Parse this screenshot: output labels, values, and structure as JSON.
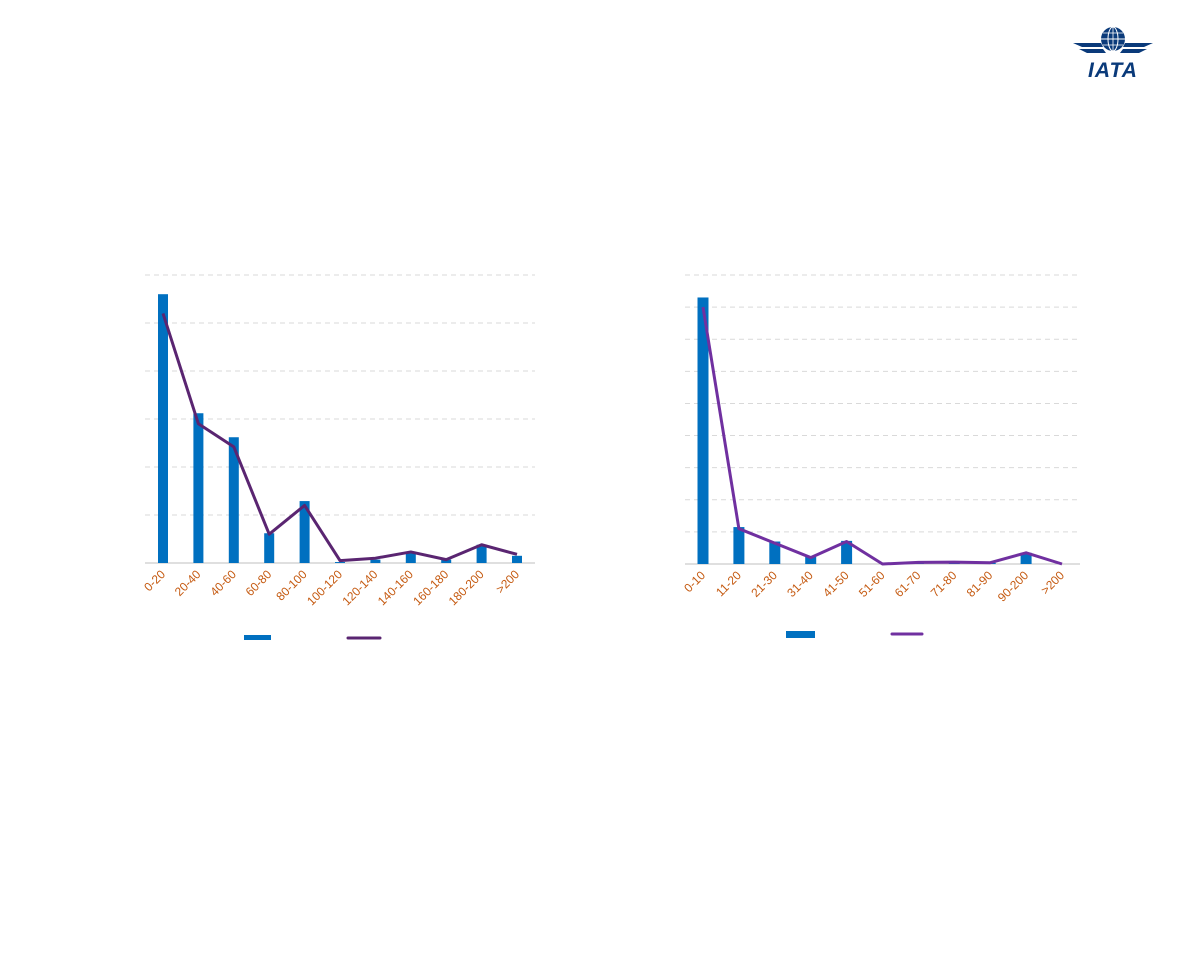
{
  "brand": {
    "logo_text": "IATA",
    "logo_color": "#0a3a7a"
  },
  "colors": {
    "bar": "#0070c0",
    "line_left": "#5a2571",
    "line_right": "#7030a0",
    "tick_label": "#c55a11",
    "grid": "#d9d9d9",
    "axis": "#bfbfbf"
  },
  "chart_data": [
    {
      "type": "bar",
      "categories": [
        "0-20",
        "20-40",
        "40-60",
        "60-80",
        "80-100",
        "100-120",
        "120-140",
        "140-160",
        "160-180",
        "180-200",
        ">200"
      ],
      "series": [
        {
          "type": "bar",
          "values": [
            5.6,
            3.12,
            2.62,
            0.62,
            1.29,
            0.02,
            0.07,
            0.22,
            0.07,
            0.38,
            0.15
          ]
        },
        {
          "type": "line",
          "values": [
            5.2,
            2.9,
            2.42,
            0.6,
            1.2,
            0.05,
            0.1,
            0.23,
            0.07,
            0.38,
            0.18
          ]
        }
      ],
      "ylim": [
        0,
        6
      ],
      "gridlines": 6,
      "grid": true,
      "legend": "bottom"
    },
    {
      "type": "bar",
      "categories": [
        "0-10",
        "11-20",
        "21-30",
        "31-40",
        "41-50",
        "51-60",
        "61-70",
        "71-80",
        "81-90",
        "90-200",
        ">200"
      ],
      "series": [
        {
          "type": "bar",
          "values": [
            8.3,
            1.15,
            0.7,
            0.22,
            0.72,
            0.0,
            0.05,
            0.05,
            0.04,
            0.35,
            0.0
          ]
        },
        {
          "type": "line",
          "values": [
            8.0,
            1.1,
            0.65,
            0.2,
            0.7,
            0.0,
            0.05,
            0.06,
            0.04,
            0.35,
            0.0
          ]
        }
      ],
      "ylim": [
        0,
        9
      ],
      "gridlines": 9,
      "grid": true,
      "legend": "bottom"
    }
  ]
}
